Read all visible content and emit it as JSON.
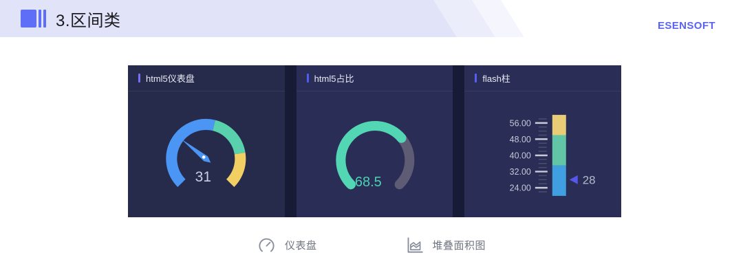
{
  "header": {
    "section_title": "3.区间类",
    "brand": "ESENSOFT",
    "band_color": "#e1e3f8",
    "accent_color": "#5f6ef6"
  },
  "panels": [
    {
      "title": "html5仪表盘",
      "accent_color": "#7372f7"
    },
    {
      "title": "html5占比",
      "accent_color": "#4f5ef2"
    },
    {
      "title": "flash柱",
      "accent_color": "#5560f0"
    }
  ],
  "chart_data": [
    {
      "type": "gauge",
      "title": "html5仪表盘",
      "value": 31,
      "min": 0,
      "max": 100,
      "start_angle": 225,
      "end_angle": -45,
      "segments": [
        {
          "to": 0.55,
          "color": "#4b96f5"
        },
        {
          "to": 0.8,
          "color": "#58d1ac"
        },
        {
          "to": 1.0,
          "color": "#f2cf63"
        }
      ],
      "needle_color": "#4b96f5",
      "value_color": "#c9cfe2"
    },
    {
      "type": "ring-gauge",
      "title": "html5占比",
      "value": 68.5,
      "min": 0,
      "max": 100,
      "start_angle": 225,
      "end_angle": -45,
      "color": "#53d6b4",
      "track_color": "#5e5c75",
      "value_color": "#49d2b2"
    },
    {
      "type": "vertical-range-bar",
      "title": "flash柱",
      "min": 20,
      "max": 60,
      "tick_values": [
        56,
        48,
        40,
        32,
        24
      ],
      "tick_labels": [
        "56.00",
        "48.00",
        "40.00",
        "32.00",
        "24.00"
      ],
      "minor_tick_step": 2,
      "segments": [
        {
          "from": 20,
          "to": 35,
          "color": "#3f9fe0"
        },
        {
          "from": 35,
          "to": 50,
          "color": "#62c6a6"
        },
        {
          "from": 50,
          "to": 60,
          "color": "#e8cd76"
        }
      ],
      "marker": {
        "value": 28,
        "label": "28",
        "color": "#5558e8",
        "label_color": "#b4bacc"
      },
      "axis_label_color": "#c3c7d6",
      "major_tick_color": "#c9ccd8",
      "minor_tick_color": "#4a4f6e"
    }
  ],
  "legend": {
    "items": [
      {
        "icon": "gauge-icon",
        "label": "仪表盘"
      },
      {
        "icon": "stacked-area-icon",
        "label": "堆叠面积图"
      }
    ]
  }
}
